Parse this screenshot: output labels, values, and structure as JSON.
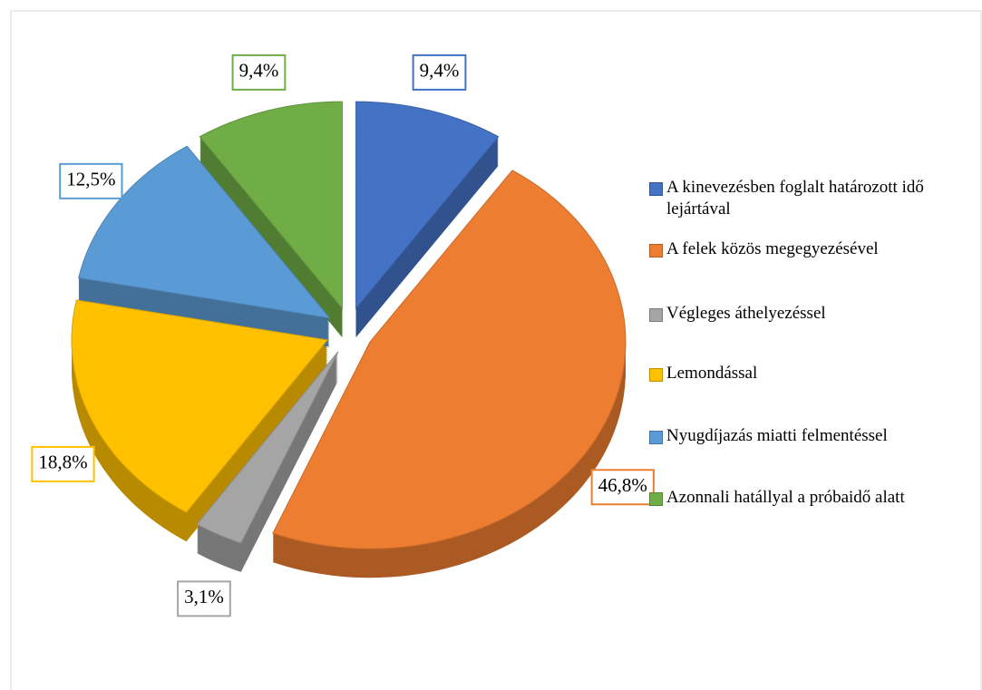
{
  "chart_data": {
    "type": "pie",
    "categories": [
      "A kinevezésben foglalt határozott idő lejártával",
      "A felek közös megegyezésével",
      "Végleges áthelyezéssel",
      "Lemondással",
      "Nyugdíjazás miatti felmentéssel",
      "Azonnali hatállyal a próbaidő alatt"
    ],
    "values": [
      9.4,
      46.8,
      3.1,
      18.8,
      12.5,
      9.4
    ],
    "value_labels": [
      "9,4%",
      "46,8%",
      "3,1%",
      "18,8%",
      "12,5%",
      "9,4%"
    ],
    "colors": [
      "#4472c4",
      "#ed7d31",
      "#a5a5a5",
      "#ffc000",
      "#5b9bd5",
      "#70ad47"
    ],
    "legend": "right"
  }
}
